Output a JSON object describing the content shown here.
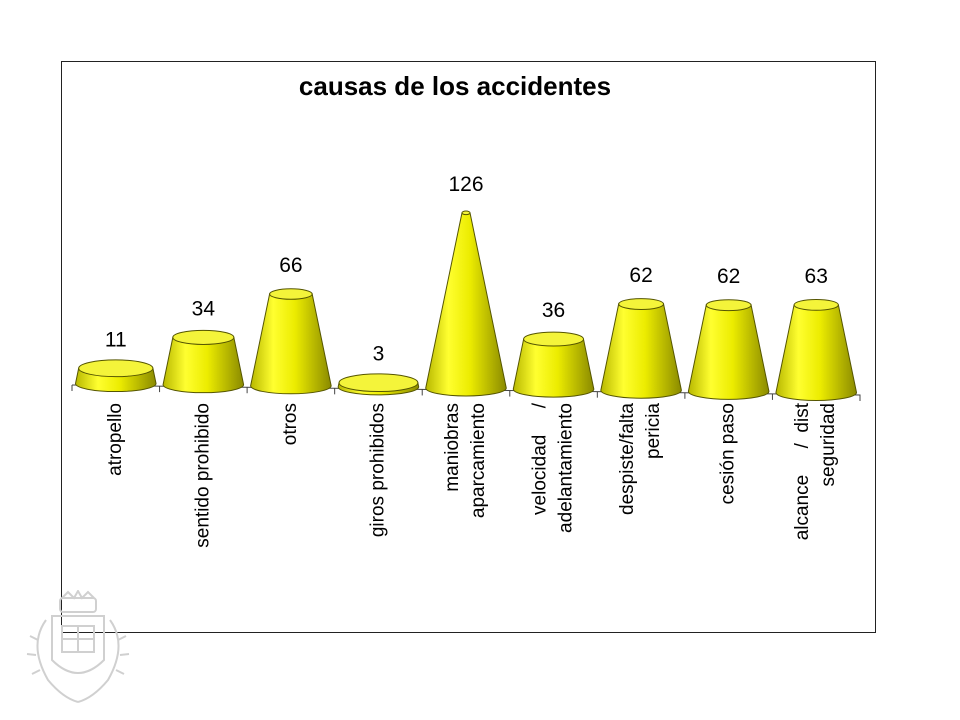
{
  "chart_data": {
    "type": "bar",
    "shape": "cone",
    "title": "causas de los accidentes",
    "xlabel": "",
    "ylabel": "",
    "ylim": [
      0,
      140
    ],
    "grid": false,
    "legend": "none",
    "bar_color": "#e8e800",
    "categories": [
      [
        "atropello"
      ],
      [
        "sentido prohibido"
      ],
      [
        "otros"
      ],
      [
        "giros prohibidos"
      ],
      [
        "maniobras",
        "aparcamiento"
      ],
      [
        "velocidad     /",
        "adelantamiento"
      ],
      [
        "despiste/falta",
        "pericia"
      ],
      [
        "cesión paso"
      ],
      [
        "alcance     /  dist",
        "seguridad"
      ]
    ],
    "values": [
      11,
      34,
      66,
      3,
      126,
      36,
      62,
      62,
      63
    ]
  }
}
